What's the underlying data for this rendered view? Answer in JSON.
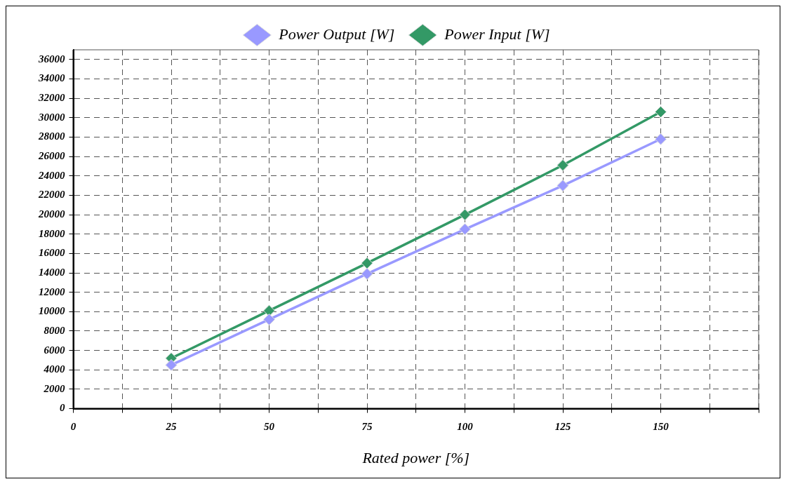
{
  "chart_data": {
    "type": "line",
    "xlabel": "Rated power [%]",
    "x": [
      25,
      50,
      75,
      100,
      125,
      150
    ],
    "xlim": [
      0,
      175
    ],
    "xticks": [
      0,
      {
        "value": 12.5,
        "label": null
      },
      25,
      {
        "value": 37.5,
        "label": null
      },
      50,
      {
        "value": 62.5,
        "label": null
      },
      75,
      {
        "value": 87.5,
        "label": null
      },
      100,
      {
        "value": 112.5,
        "label": null
      },
      125,
      {
        "value": 137.5,
        "label": null
      },
      150,
      {
        "value": 162.5,
        "label": null
      },
      {
        "value": 175,
        "label": null
      }
    ],
    "ylim": [
      0,
      37000
    ],
    "yticks": [
      0,
      2000,
      4000,
      6000,
      8000,
      10000,
      12000,
      14000,
      16000,
      18000,
      20000,
      22000,
      24000,
      26000,
      28000,
      30000,
      32000,
      34000,
      36000
    ],
    "series": [
      {
        "name": "Power Output [W]",
        "color": "#9999ff",
        "values": [
          4500,
          9200,
          13900,
          18500,
          23000,
          27800
        ]
      },
      {
        "name": "Power Input [W]",
        "color": "#339966",
        "values": [
          5200,
          10100,
          15000,
          20000,
          25100,
          30600
        ]
      }
    ],
    "grid": true,
    "legend": "top",
    "marker": "diamond",
    "line_style": "solid"
  }
}
